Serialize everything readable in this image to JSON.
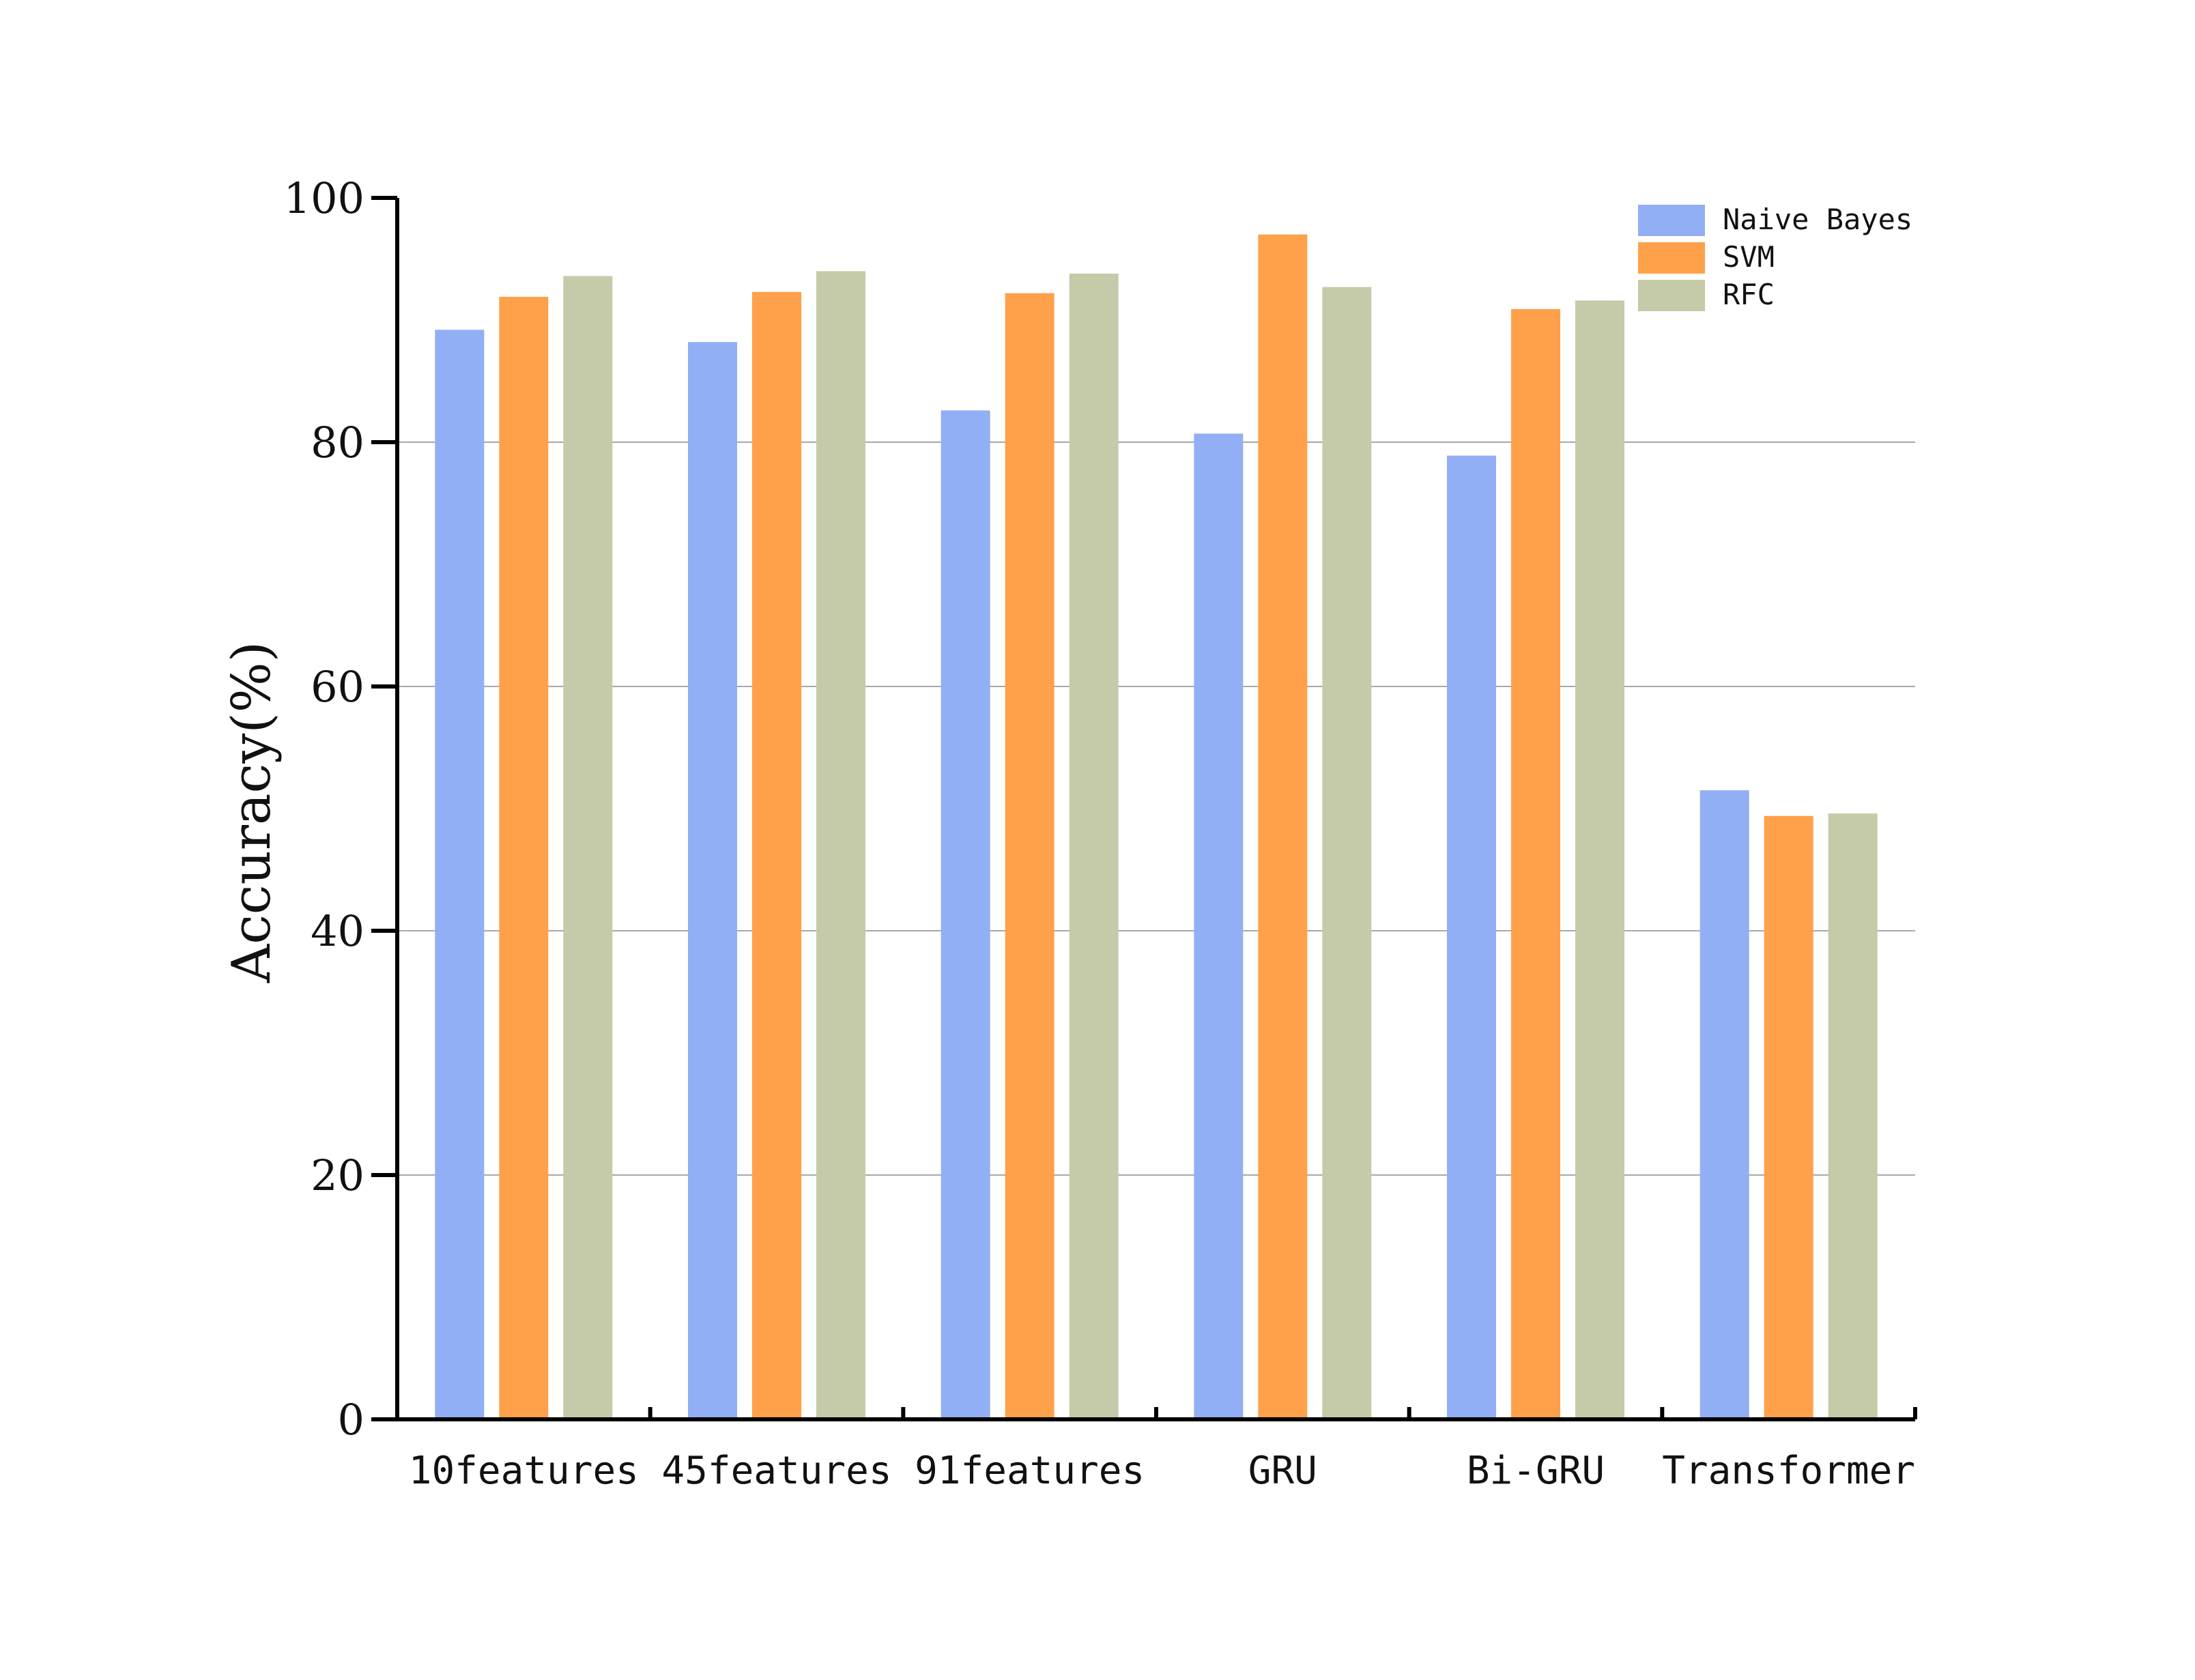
{
  "chart_data": {
    "type": "bar",
    "title": "",
    "xlabel": "",
    "ylabel": "Accuracy(%)",
    "ylim": [
      0,
      100
    ],
    "yticks": [
      0,
      20,
      40,
      60,
      80,
      100
    ],
    "grid": true,
    "legend_position": "top-right",
    "categories": [
      "10features",
      "45features",
      "91features",
      "GRU",
      "Bi-GRU",
      "Transformer"
    ],
    "series": [
      {
        "name": "Naive Bayes",
        "color": "#92AEF5",
        "values": [
          89.2,
          88.2,
          82.6,
          80.7,
          78.9,
          51.5
        ]
      },
      {
        "name": "SVM",
        "color": "#FFA04A",
        "values": [
          91.9,
          92.3,
          92.2,
          97.0,
          90.9,
          49.4
        ]
      },
      {
        "name": "RFC",
        "color": "#C5CAA8",
        "values": [
          93.6,
          94.0,
          93.8,
          92.7,
          91.6,
          49.6
        ]
      }
    ]
  }
}
